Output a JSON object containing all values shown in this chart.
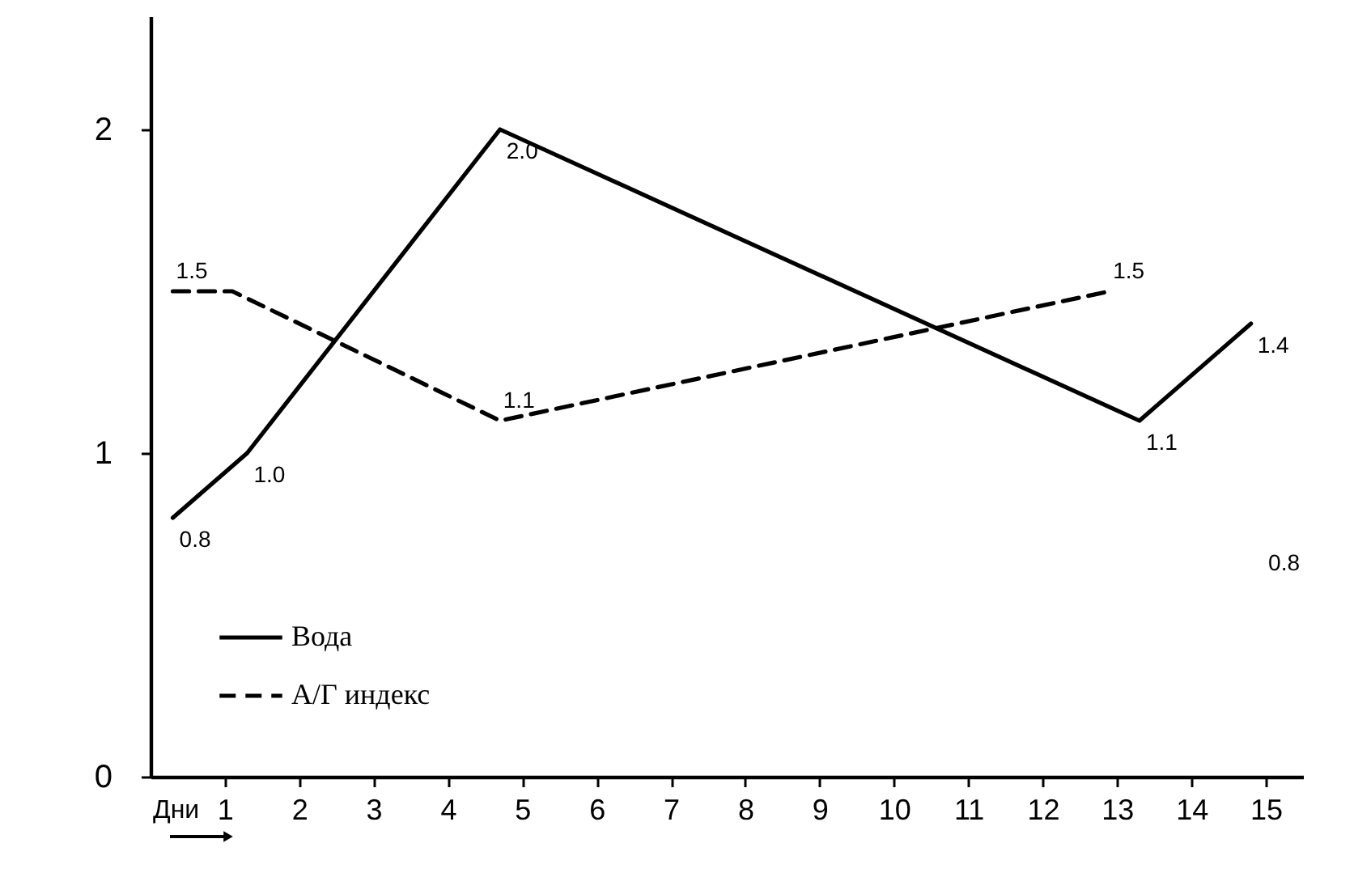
{
  "chart_data": {
    "type": "line",
    "xlabel": "Дни",
    "xlim": [
      0,
      15.5
    ],
    "xticks": [
      1,
      2,
      3,
      4,
      5,
      6,
      7,
      8,
      9,
      10,
      11,
      12,
      13,
      14,
      15
    ],
    "ylim": [
      0,
      2.35
    ],
    "yticks": [
      0,
      1,
      2
    ],
    "legend": "bottom left",
    "series": [
      {
        "name": "Вода",
        "color": "#000000",
        "line_style": "solid",
        "x": [
          0.3,
          1.3,
          4.7,
          13.3,
          14.8
        ],
        "values": [
          0.8,
          1.0,
          2.0,
          1.1,
          1.4
        ],
        "value_labels": [
          "0.8",
          "1.0",
          "2.0",
          "1.1",
          "1.4"
        ]
      },
      {
        "name": "А/Г индекс",
        "color": "#000000",
        "line_style": "dashed",
        "x": [
          0.3,
          1.1,
          4.7,
          12.9
        ],
        "values": [
          1.5,
          1.5,
          1.1,
          1.5
        ],
        "value_labels": [
          "1.5",
          null,
          "1.1",
          "1.5"
        ]
      }
    ],
    "annotations": [
      "0.8"
    ]
  }
}
